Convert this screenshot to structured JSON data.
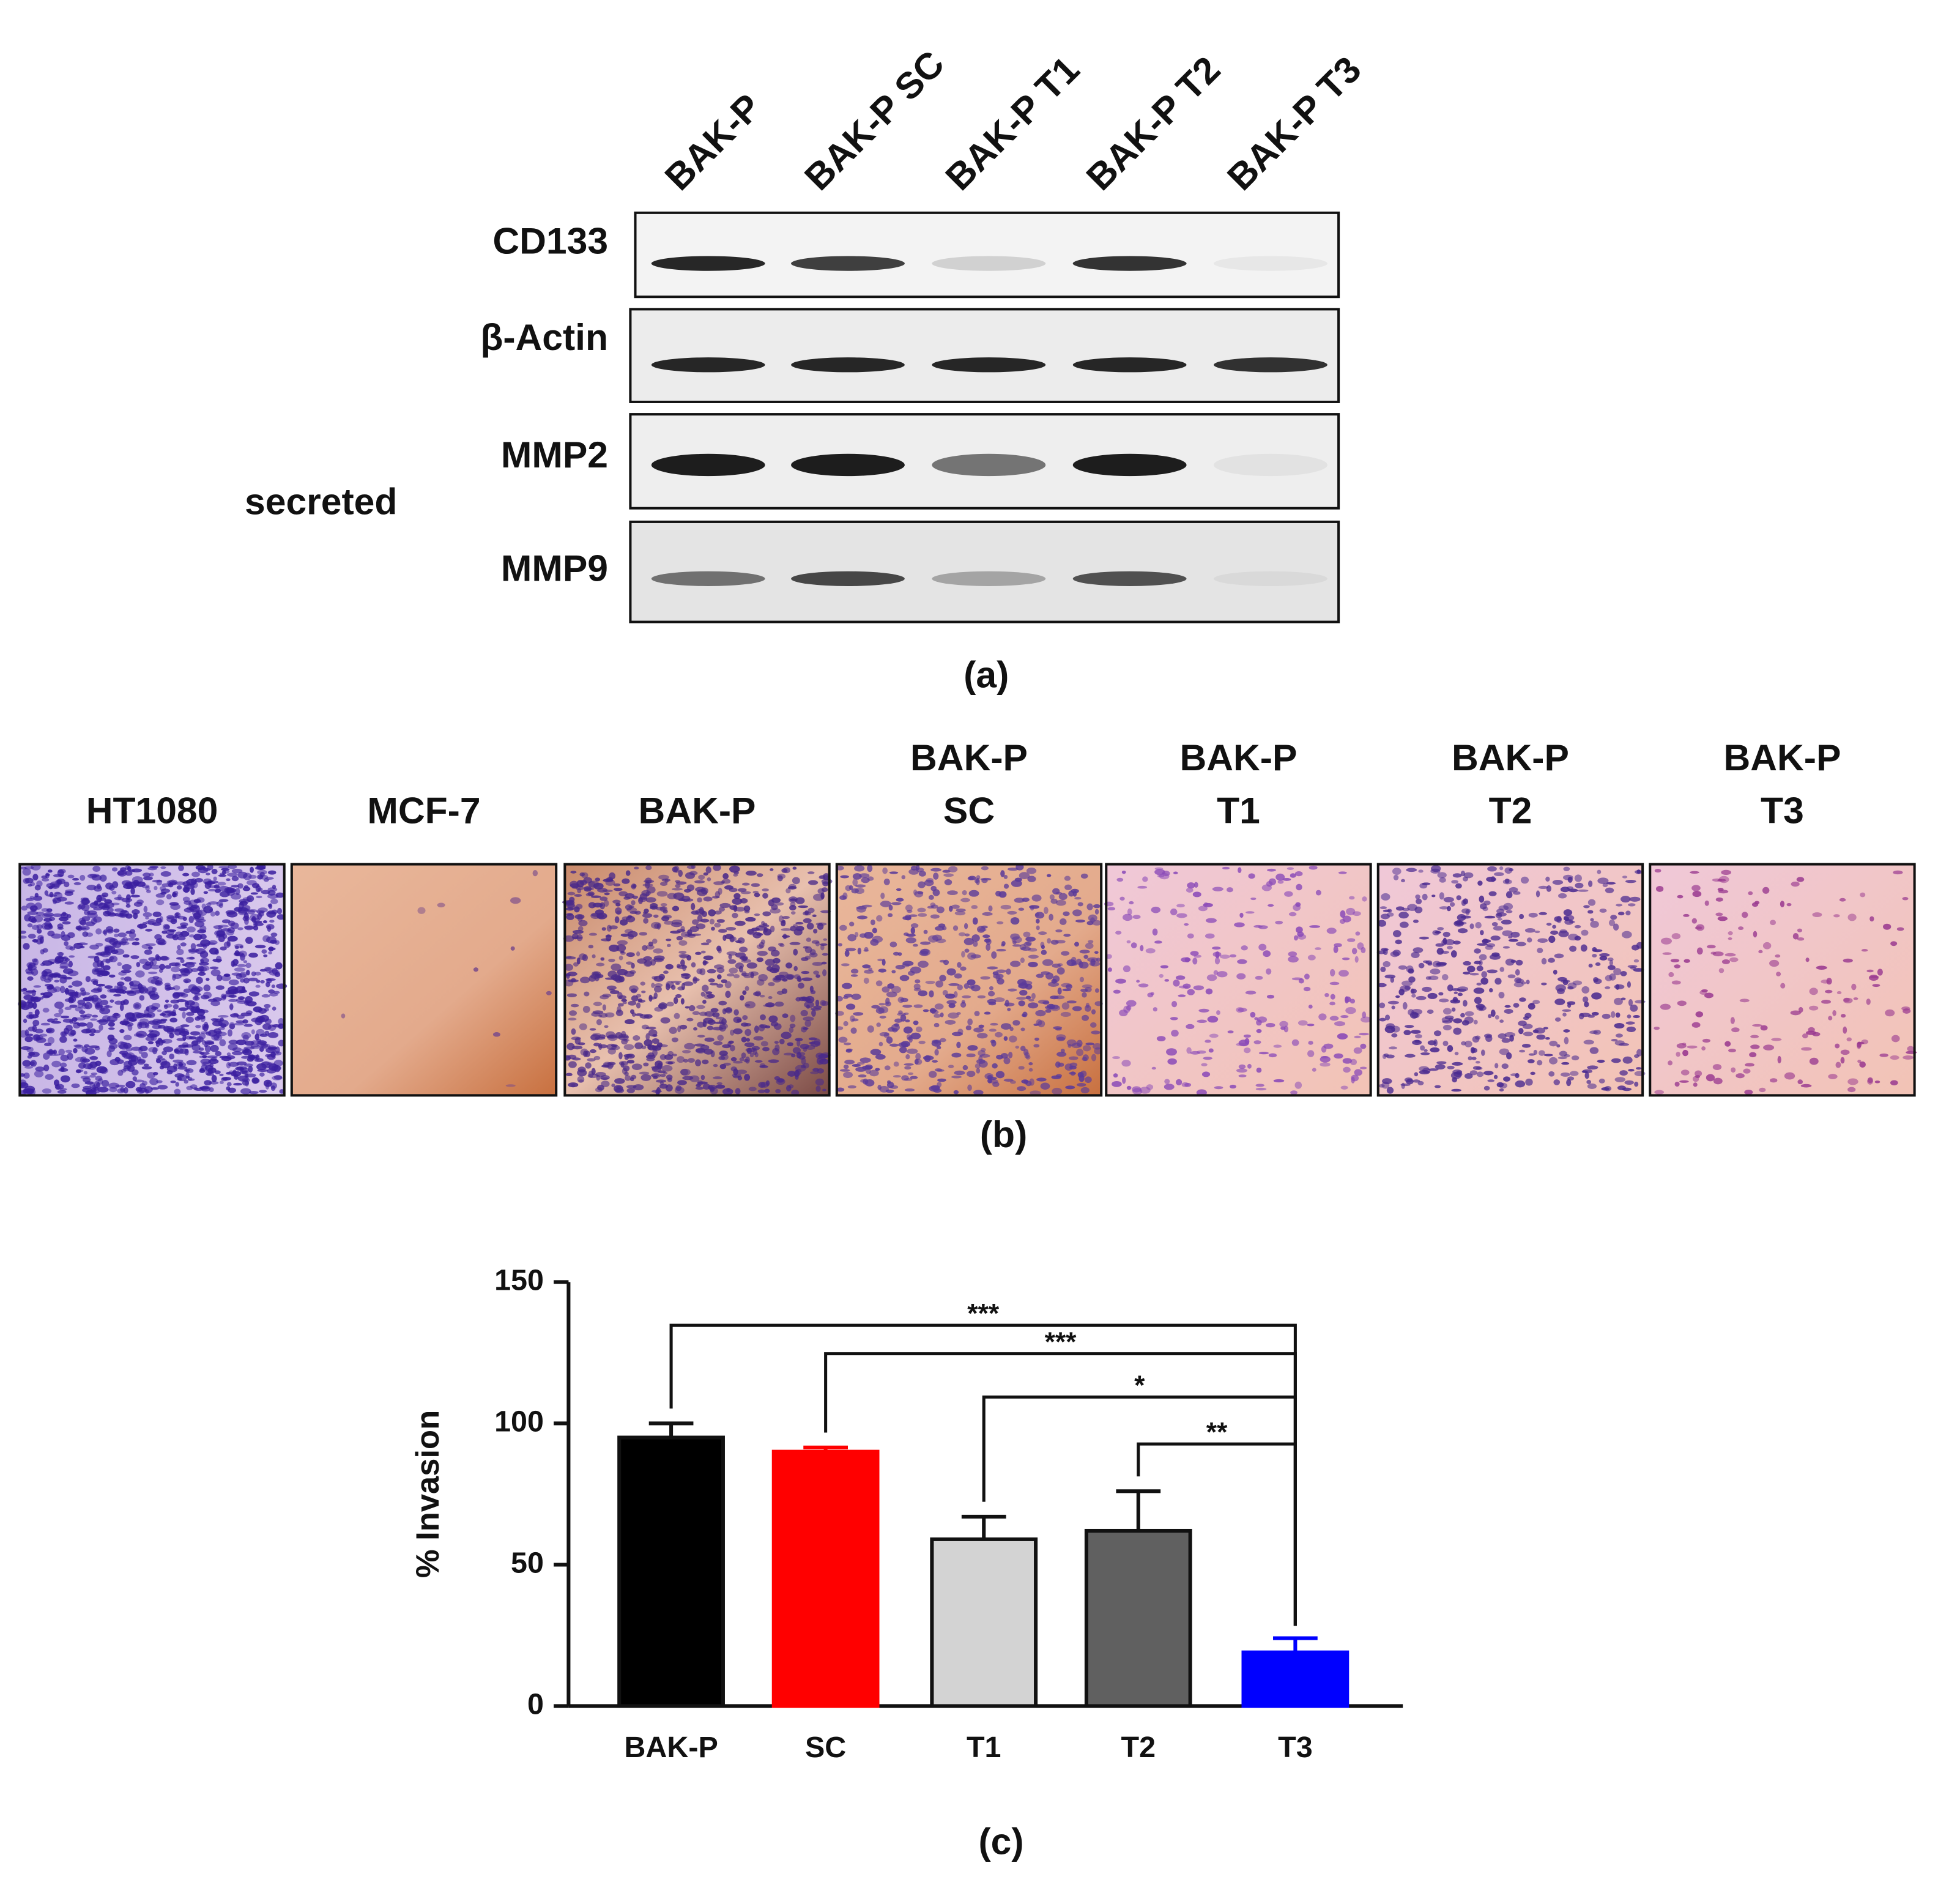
{
  "panel_a": {
    "lanes": [
      "BAK-P",
      "BAK-P SC",
      "BAK-P T1",
      "BAK-P T2",
      "BAK-P T3"
    ],
    "rows": [
      "CD133",
      "β-Actin",
      "MMP2",
      "MMP9"
    ],
    "group_label": "secreted",
    "caption": "(a)"
  },
  "panel_b": {
    "images": [
      {
        "label": [
          "HT1080"
        ]
      },
      {
        "label": [
          "MCF-7"
        ]
      },
      {
        "label": [
          "BAK-P"
        ]
      },
      {
        "label": [
          "BAK-P",
          "SC"
        ]
      },
      {
        "label": [
          "BAK-P",
          "T1"
        ]
      },
      {
        "label": [
          "BAK-P",
          "T2"
        ]
      },
      {
        "label": [
          "BAK-P",
          "T3"
        ]
      }
    ],
    "caption": "(b)"
  },
  "chart_data": {
    "type": "bar",
    "y_label": "% Invasion",
    "categories": [
      "BAK-P",
      "SC",
      "T1",
      "T2",
      "T3"
    ],
    "values": [
      95,
      90,
      59,
      62,
      19
    ],
    "errors": [
      5,
      1.5,
      8,
      14,
      5
    ],
    "colors": [
      "#000000",
      "#ff0000",
      "#d3d3d3",
      "#606060",
      "#0000ff"
    ],
    "ylim": [
      0,
      150
    ],
    "yticks": [
      0,
      50,
      100,
      150
    ],
    "significance": [
      {
        "between": [
          0,
          4
        ],
        "label": "***"
      },
      {
        "between": [
          1,
          4
        ],
        "label": "***"
      },
      {
        "between": [
          2,
          4
        ],
        "label": "*"
      },
      {
        "between": [
          3,
          4
        ],
        "label": "**"
      }
    ],
    "caption": "(c)"
  }
}
